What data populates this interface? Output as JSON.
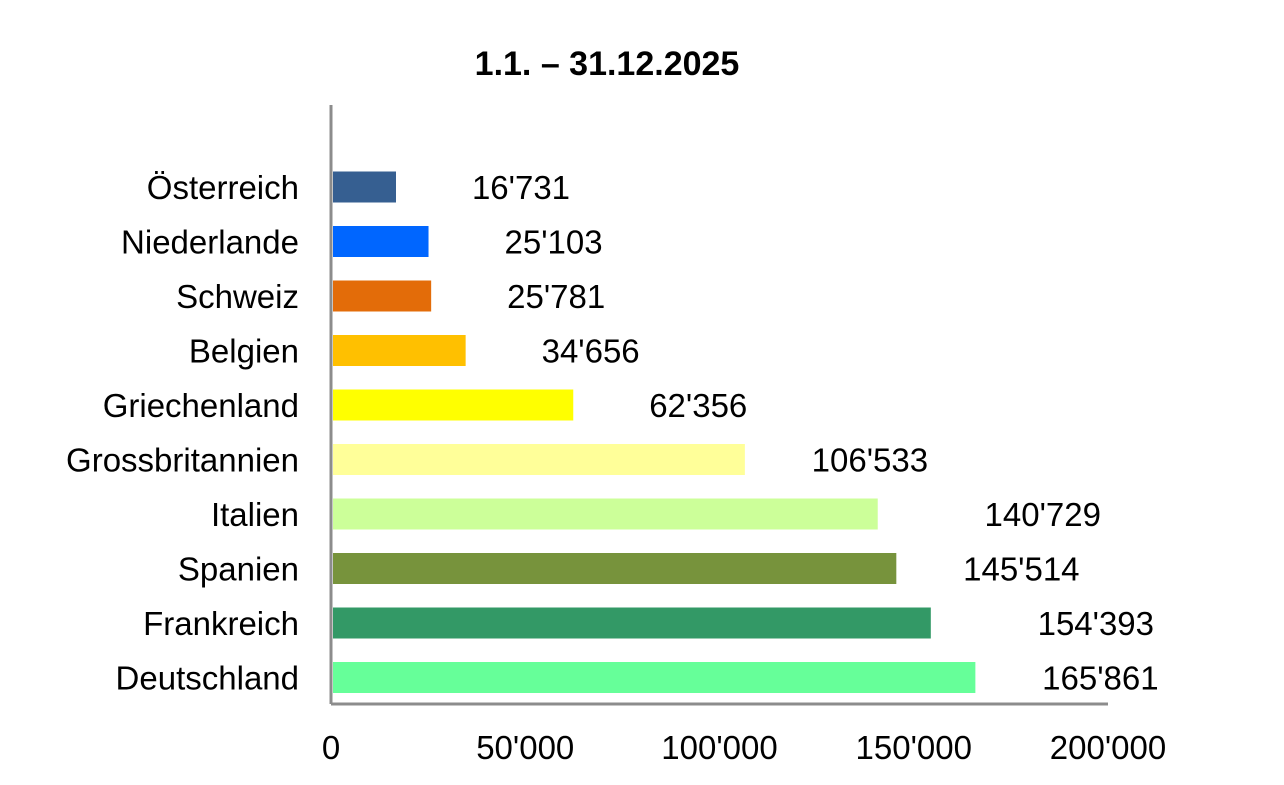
{
  "chart_data": {
    "type": "bar",
    "orientation": "horizontal",
    "title": "1.1. – 31.12.2025",
    "xlabel": "",
    "ylabel": "",
    "xlim": [
      0,
      200000
    ],
    "grid": false,
    "legend": "none",
    "categories": [
      "Österreich",
      "Niederlande",
      "Schweiz",
      "Belgien",
      "Griechenland",
      "Grossbritannien",
      "Italien",
      "Spanien",
      "Frankreich",
      "Deutschland"
    ],
    "values": [
      16731,
      25103,
      25781,
      34656,
      62356,
      106533,
      140729,
      145514,
      154393,
      165861
    ],
    "value_labels": [
      "16'731",
      "25'103",
      "25'781",
      "34'656",
      "62'356",
      "106'533",
      "140'729",
      "145'514",
      "154'393",
      "165'861"
    ],
    "colors": [
      "#365f91",
      "#0066ff",
      "#e36c09",
      "#ffc000",
      "#ffff00",
      "#ffff99",
      "#ccff99",
      "#77933c",
      "#339966",
      "#66ff99"
    ],
    "x_ticks": [
      0,
      50000,
      100000,
      150000,
      200000
    ],
    "x_tick_labels": [
      "0",
      "50'000",
      "100'000",
      "150'000",
      "200'000"
    ]
  }
}
